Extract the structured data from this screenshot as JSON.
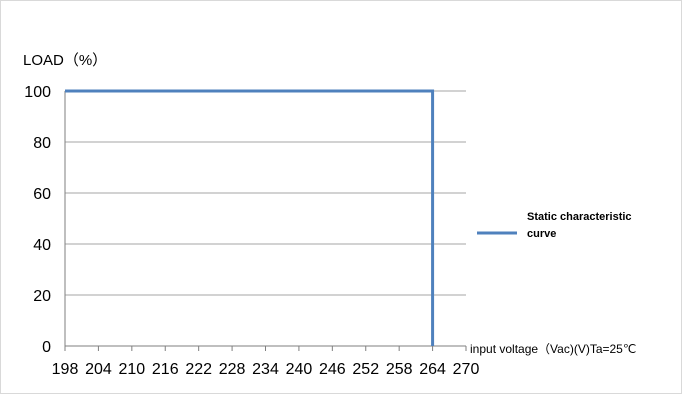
{
  "chart_data": {
    "type": "line",
    "ylabel": "LOAD（%）",
    "xlabel": "input voltage（Vac)(V)Ta=25℃",
    "x_ticks": [
      198,
      204,
      210,
      216,
      222,
      228,
      234,
      240,
      246,
      252,
      258,
      264,
      270
    ],
    "y_ticks": [
      0,
      20,
      40,
      60,
      80,
      100
    ],
    "xlim": [
      198,
      270
    ],
    "ylim": [
      0,
      100
    ],
    "grid": "horizontal",
    "legend_position": "right",
    "series": [
      {
        "name": "Static characteristic curve",
        "name_lines": [
          "Static characteristic",
          "curve"
        ],
        "color": "#4f81bd",
        "points": [
          [
            198,
            100
          ],
          [
            264,
            100
          ],
          [
            264,
            0
          ]
        ]
      }
    ]
  }
}
